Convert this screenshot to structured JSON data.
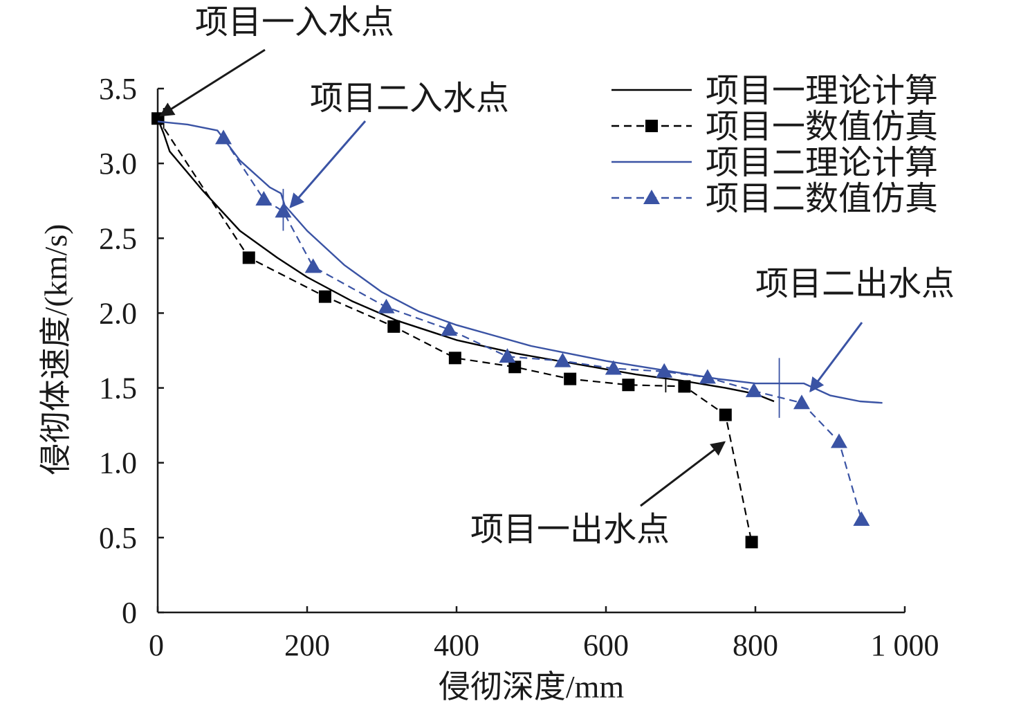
{
  "chart_data": {
    "type": "line",
    "xlabel": "侵彻深度/mm",
    "ylabel": "侵彻体速度/(km/s)",
    "xlim": [
      0,
      1000
    ],
    "ylim": [
      0,
      3.5
    ],
    "x_ticks": [
      "0",
      "200",
      "400",
      "600",
      "800",
      "1 000"
    ],
    "y_ticks": [
      "0",
      "0.5",
      "1.0",
      "1.5",
      "2.0",
      "2.5",
      "3.0",
      "3.5"
    ],
    "grid": false,
    "legend_position": "top-right",
    "series": [
      {
        "name": "项目一理论计算",
        "style": "solid",
        "color": "#000000",
        "marker": "none",
        "x": [
          0,
          8,
          16,
          60,
          110,
          160,
          200,
          260,
          320,
          400,
          480,
          560,
          640,
          700,
          760,
          800,
          815,
          825
        ],
        "y": [
          3.3,
          3.2,
          3.08,
          2.82,
          2.55,
          2.37,
          2.24,
          2.08,
          1.95,
          1.82,
          1.73,
          1.66,
          1.59,
          1.55,
          1.5,
          1.46,
          1.43,
          1.41
        ]
      },
      {
        "name": "项目一数值仿真",
        "style": "dashed",
        "color": "#000000",
        "marker": "square",
        "x": [
          0,
          122,
          224,
          316,
          398,
          478,
          552,
          630,
          705,
          760,
          795
        ],
        "y": [
          3.3,
          2.37,
          2.11,
          1.91,
          1.7,
          1.64,
          1.56,
          1.52,
          1.51,
          1.32,
          0.47
        ]
      },
      {
        "name": "项目二理论计算",
        "style": "solid",
        "color": "#3a53a4",
        "marker": "none",
        "x": [
          0,
          40,
          80,
          95,
          110,
          130,
          150,
          165,
          170,
          200,
          250,
          300,
          350,
          400,
          450,
          500,
          550,
          600,
          650,
          700,
          750,
          800,
          830,
          865,
          900,
          940,
          970
        ],
        "y": [
          3.28,
          3.26,
          3.22,
          3.12,
          3.02,
          2.93,
          2.84,
          2.8,
          2.72,
          2.55,
          2.32,
          2.14,
          2.01,
          1.92,
          1.85,
          1.78,
          1.73,
          1.68,
          1.64,
          1.6,
          1.56,
          1.53,
          1.53,
          1.53,
          1.45,
          1.41,
          1.4
        ]
      },
      {
        "name": "项目二数值仿真",
        "style": "dashed",
        "color": "#3a53a4",
        "marker": "triangle",
        "x": [
          88,
          142,
          168,
          208,
          306,
          390,
          468,
          542,
          610,
          678,
          736,
          798,
          862,
          912,
          942
        ],
        "y": [
          3.17,
          2.76,
          2.68,
          2.31,
          2.04,
          1.89,
          1.71,
          1.68,
          1.63,
          1.61,
          1.57,
          1.48,
          1.4,
          1.14,
          0.62
        ]
      }
    ],
    "reference_lines": [
      {
        "x": 168,
        "y_from": 2.55,
        "y_to": 2.83,
        "color": "#3a53a4"
      },
      {
        "x": 832,
        "y_from": 1.3,
        "y_to": 1.7,
        "color": "#3a53a4"
      },
      {
        "x": 680,
        "y_from": 1.47,
        "y_to": 1.58,
        "color": "#000000"
      },
      {
        "x": 8,
        "y_from": 3.23,
        "y_to": 3.37,
        "color": "#000000"
      }
    ],
    "annotations": [
      {
        "text": "项目一入水点",
        "color": "#000000",
        "x": 0,
        "y": 3.3
      },
      {
        "text": "项目二入水点",
        "color": "#3a53a4",
        "x": 172,
        "y": 2.68
      },
      {
        "text": "项目二出水点",
        "color": "#3a53a4",
        "x": 868,
        "y": 1.45
      },
      {
        "text": "项目一出水点",
        "color": "#000000",
        "x": 755,
        "y": 1.12
      }
    ]
  }
}
